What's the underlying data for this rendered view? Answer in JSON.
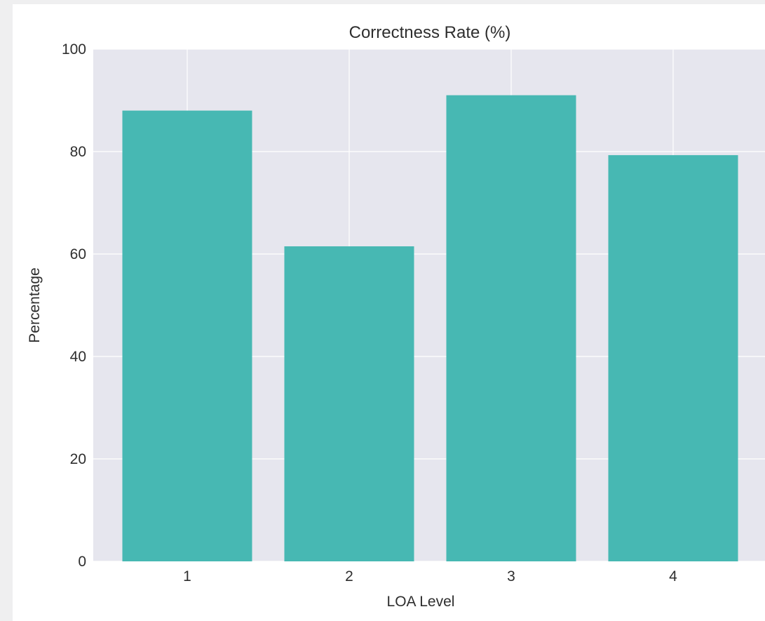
{
  "chart_data": {
    "type": "bar",
    "title": "Correctness Rate (%)",
    "xlabel": "LOA Level",
    "ylabel": "Percentage",
    "categories": [
      "1",
      "2",
      "3",
      "4"
    ],
    "values": [
      88,
      61.5,
      91,
      79.3
    ],
    "ylim": [
      0,
      100
    ],
    "yticks": [
      "0",
      "20",
      "40",
      "60",
      "80",
      "100"
    ],
    "grid": true,
    "legend": "none",
    "colors": {
      "bar": "#47b8b3",
      "plot_background": "#e6e6ee",
      "grid": "#ffffff",
      "text": "#2e2e2e"
    }
  }
}
